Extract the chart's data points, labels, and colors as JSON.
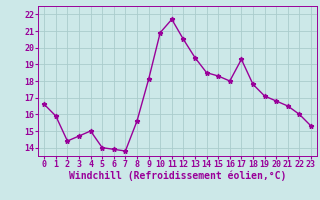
{
  "x": [
    0,
    1,
    2,
    3,
    4,
    5,
    6,
    7,
    8,
    9,
    10,
    11,
    12,
    13,
    14,
    15,
    16,
    17,
    18,
    19,
    20,
    21,
    22,
    23
  ],
  "y": [
    16.6,
    15.9,
    14.4,
    14.7,
    15.0,
    14.0,
    13.9,
    13.8,
    15.6,
    18.1,
    20.9,
    21.7,
    20.5,
    19.4,
    18.5,
    18.3,
    18.0,
    19.3,
    17.8,
    17.1,
    16.8,
    16.5,
    16.0,
    15.3
  ],
  "line_color": "#990099",
  "marker": "*",
  "marker_size": 3.5,
  "bg_color": "#cce8e8",
  "grid_color": "#aacccc",
  "xlabel": "Windchill (Refroidissement éolien,°C)",
  "ylabel": "",
  "ylim": [
    13.5,
    22.5
  ],
  "xlim": [
    -0.5,
    23.5
  ],
  "yticks": [
    14,
    15,
    16,
    17,
    18,
    19,
    20,
    21,
    22
  ],
  "xticks": [
    0,
    1,
    2,
    3,
    4,
    5,
    6,
    7,
    8,
    9,
    10,
    11,
    12,
    13,
    14,
    15,
    16,
    17,
    18,
    19,
    20,
    21,
    22,
    23
  ],
  "tick_label_fontsize": 6,
  "xlabel_fontsize": 7,
  "line_width": 1.0
}
